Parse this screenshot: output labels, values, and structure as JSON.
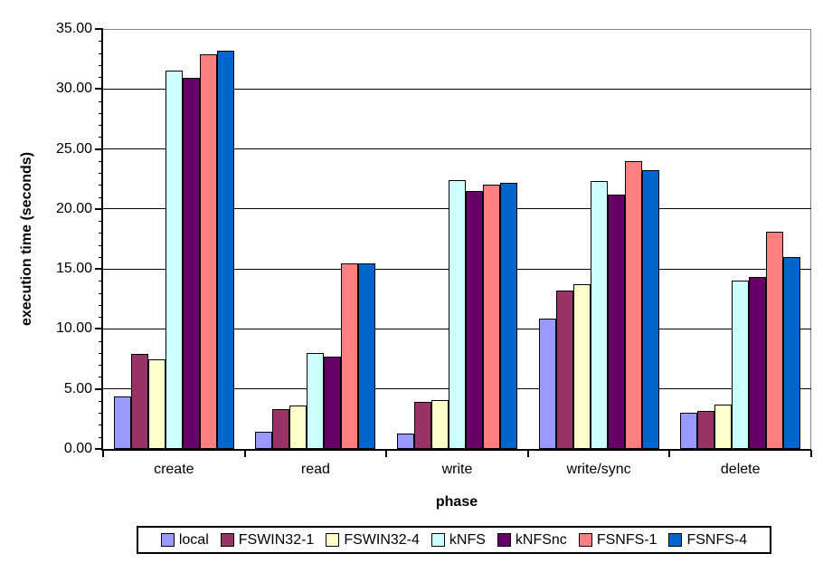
{
  "chart_data": {
    "type": "bar",
    "title": "",
    "xlabel": "phase",
    "ylabel": "execution time (seconds)",
    "categories": [
      "create",
      "read",
      "write",
      "write/sync",
      "delete"
    ],
    "series": [
      {
        "name": "local",
        "color": "#9999FF",
        "values": [
          4.4,
          1.4,
          1.3,
          10.9,
          3.0
        ]
      },
      {
        "name": "FSWIN32-1",
        "color": "#993366",
        "values": [
          7.9,
          3.3,
          3.9,
          13.2,
          3.2
        ]
      },
      {
        "name": "FSWIN32-4",
        "color": "#FFFFCC",
        "values": [
          7.5,
          3.6,
          4.1,
          13.7,
          3.7
        ]
      },
      {
        "name": "kNFS",
        "color": "#CCFFFF",
        "values": [
          31.5,
          8.0,
          22.4,
          22.3,
          14.0
        ]
      },
      {
        "name": "kNFSnc",
        "color": "#660066",
        "values": [
          30.9,
          7.7,
          21.5,
          21.2,
          14.3
        ]
      },
      {
        "name": "FSNFS-1",
        "color": "#FF8080",
        "values": [
          32.9,
          15.5,
          22.0,
          24.0,
          18.1
        ]
      },
      {
        "name": "FSNFS-4",
        "color": "#0066CC",
        "values": [
          33.2,
          15.5,
          22.2,
          23.2,
          16.0
        ]
      }
    ],
    "ylim": [
      0,
      35
    ],
    "ytick_step": 5,
    "ytick_labels": [
      "0.00",
      "5.00",
      "10.00",
      "15.00",
      "20.00",
      "25.00",
      "30.00",
      "35.00"
    ],
    "yminor_step": 1,
    "grid": true,
    "legend_position": "bottom"
  },
  "colors": {
    "background": "#FFFFFF",
    "plot_border": "#848284",
    "axis": "#000000",
    "gridline": "#000000",
    "legend_border": "#000000"
  }
}
